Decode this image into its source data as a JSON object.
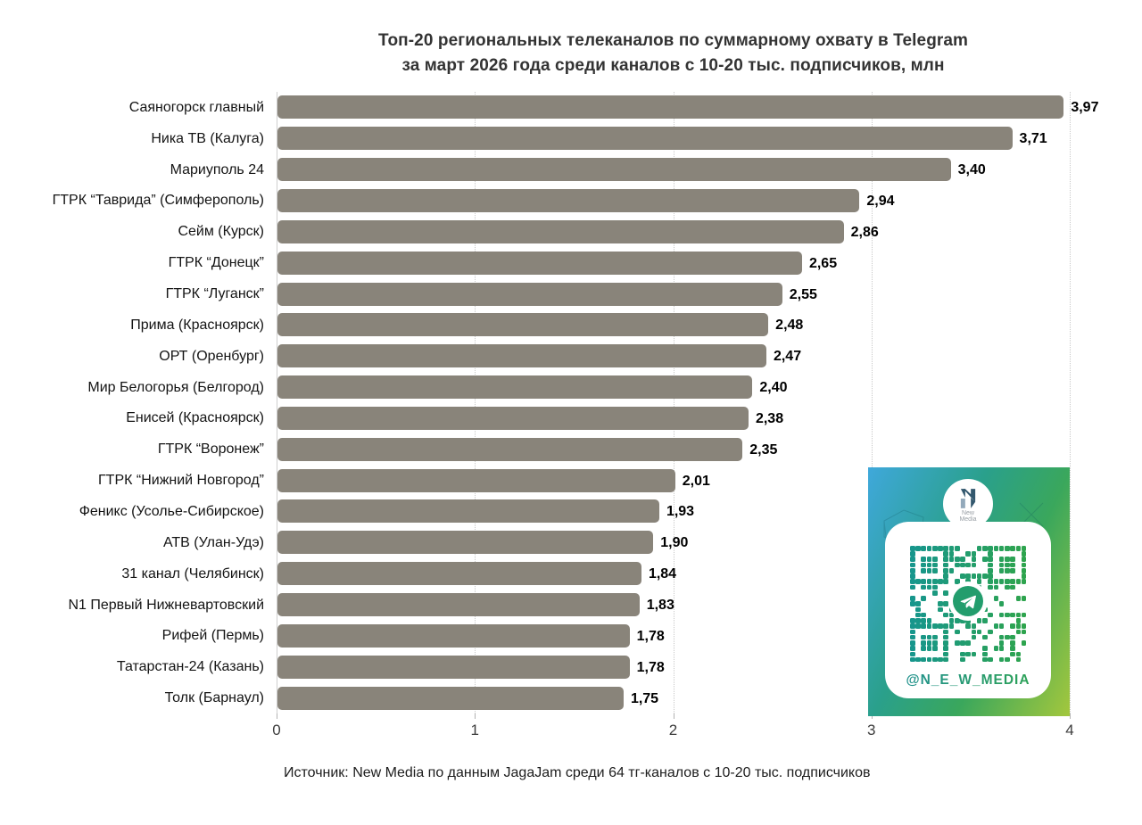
{
  "chart_data": {
    "type": "bar",
    "orientation": "horizontal",
    "title": "Топ-20 региональных телеканалов по суммарному охвату в Telegram за март 2026 года среди каналов с 10-20 тыс. подписчиков, млн",
    "title_line1": "Топ-20 региональных телеканалов по суммарному охвату в Telegram",
    "title_line2": "за март 2026 года среди каналов с 10-20 тыс. подписчиков, млн",
    "categories": [
      "Саяногорск главный",
      "Ника ТВ (Калуга)",
      "Мариуполь 24",
      "ГТРК “Таврида” (Симферополь)",
      "Сейм (Курск)",
      "ГТРК “Донецк”",
      "ГТРК “Луганск”",
      "Прима (Красноярск)",
      "ОРТ (Оренбург)",
      "Мир Белогорья (Белгород)",
      "Енисей (Красноярск)",
      "ГТРК “Воронеж”",
      "ГТРК “Нижний Новгород”",
      "Феникс (Усолье-Сибирское)",
      "АТВ (Улан-Удэ)",
      "31 канал (Челябинск)",
      "N1 Первый Нижневартовский",
      "Рифей (Пермь)",
      "Татарстан-24 (Казань)",
      "Толк (Барнаул)"
    ],
    "values": [
      3.97,
      3.71,
      3.4,
      2.94,
      2.86,
      2.65,
      2.55,
      2.48,
      2.47,
      2.4,
      2.38,
      2.35,
      2.01,
      1.93,
      1.9,
      1.84,
      1.83,
      1.78,
      1.78,
      1.75
    ],
    "value_labels": [
      "3,97",
      "3,71",
      "3,40",
      "2,94",
      "2,86",
      "2,65",
      "2,55",
      "2,48",
      "2,47",
      "2,40",
      "2,38",
      "2,35",
      "2,01",
      "1,93",
      "1,90",
      "1,84",
      "1,83",
      "1,78",
      "1,78",
      "1,75"
    ],
    "x_ticks": [
      0,
      1,
      2,
      3,
      4
    ],
    "xlim": [
      0,
      4
    ],
    "grid": "vertical-dotted",
    "legend": "none",
    "unit": "млн"
  },
  "footer": {
    "source": "Источник: New Media по данным JagaJam среди 64 тг-каналов с 10-20 тыс. подписчиков"
  },
  "badge": {
    "handle": "@N_E_W_MEDIA",
    "logo_top": "New",
    "logo_bottom": "Media"
  },
  "colors": {
    "bar": "#89847A",
    "grid": "#C9C9C9",
    "axis": "#CFCFCF",
    "title": "#333333",
    "category_text": "#141414",
    "value_text": "#000000",
    "tick_text": "#3C3C3C",
    "badge_blue": "#3FA8DB",
    "badge_teal": "#2AA08B",
    "badge_green": "#3AA75C",
    "badge_lime": "#A3C73D",
    "qr_teal": "#17968C",
    "qr_green": "#2EA44E",
    "logo_navy": "#33586E",
    "logo_steel": "#93A9BB"
  }
}
